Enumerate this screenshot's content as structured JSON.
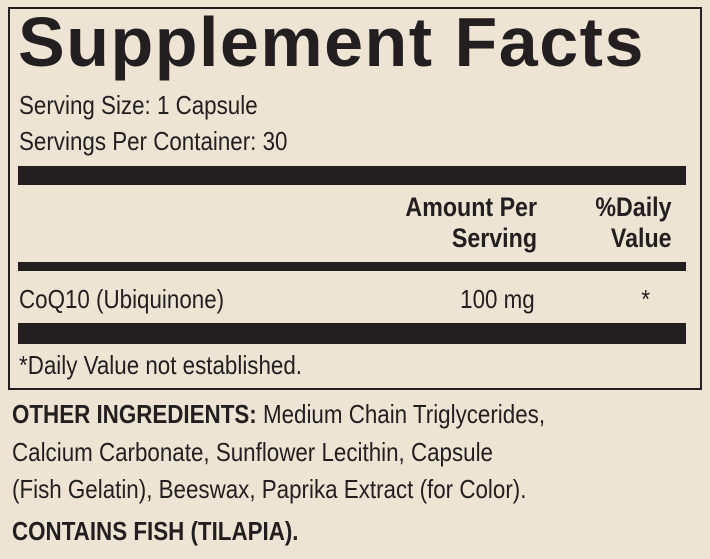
{
  "label": {
    "title": "Supplement Facts",
    "serving_size": "Serving Size: 1 Capsule",
    "servings_per_container": "Servings Per Container: 30",
    "columns": {
      "amount_line1": "Amount Per",
      "amount_line2": "Serving",
      "dv_line1": "%Daily",
      "dv_line2": "Value"
    },
    "rows": [
      {
        "name": "CoQ10 (Ubiquinone)",
        "amount": "100 mg",
        "dv": "*"
      }
    ],
    "footnote": "*Daily Value not established."
  },
  "other_ingredients": {
    "heading": "OTHER INGREDIENTS:",
    "line1": " Medium Chain Triglycerides,",
    "line2": "Calcium Carbonate, Sunflower Lecithin, Capsule",
    "line3": "(Fish Gelatin), Beeswax, Paprika Extract (for Color)."
  },
  "allergen": "CONTAINS FISH (TILAPIA).",
  "colors": {
    "background": "#ede4d3",
    "ink": "#231f20"
  }
}
